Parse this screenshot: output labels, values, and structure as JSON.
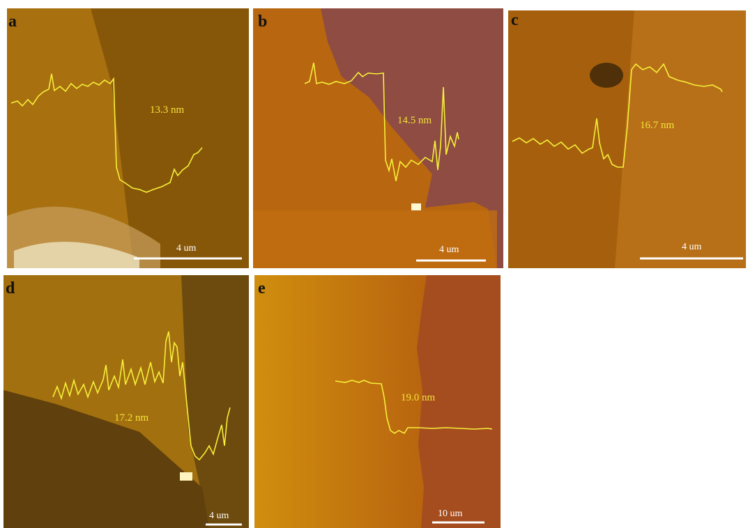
{
  "panels": [
    {
      "label": "a",
      "height": "13.3 nm",
      "scale_bar": "4 um"
    },
    {
      "label": "b",
      "height": "14.5 nm",
      "scale_bar": "4 um"
    },
    {
      "label": "c",
      "height": "16.7 nm",
      "scale_bar": "4 um"
    },
    {
      "label": "d",
      "height": "17.2 nm",
      "scale_bar": "4 um"
    },
    {
      "label": "e",
      "height": "19.0 nm",
      "scale_bar": "10 um"
    }
  ]
}
